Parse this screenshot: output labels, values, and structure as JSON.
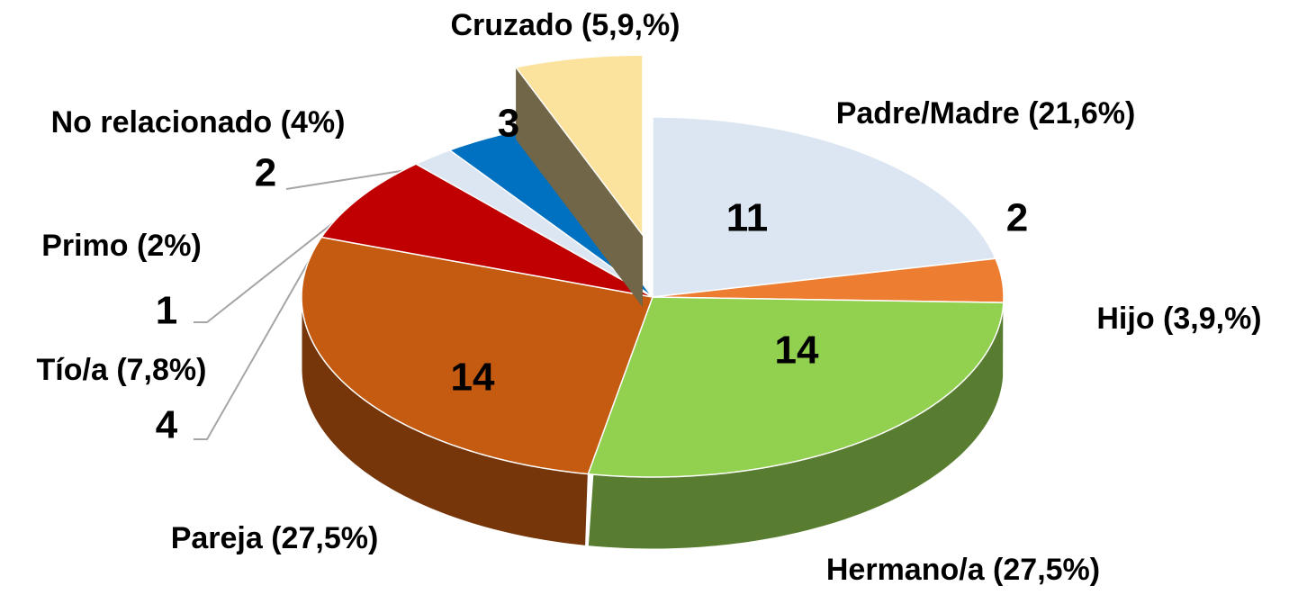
{
  "chart_data": {
    "type": "pie",
    "categories": [
      "Padre/Madre (21,6%)",
      "Hijo (3,9,%)",
      "Hermano/a (27,5%)",
      "Pareja (27,5%)",
      "Tío/a (7,8%)",
      "Primo  (2%)",
      "No relacionado (4%)",
      "Cruzado (5,9,%)"
    ],
    "values": [
      11,
      2,
      14,
      14,
      4,
      1,
      2,
      3
    ],
    "colors": [
      "#dce6f2",
      "#ed7d31",
      "#92d050",
      "#c55a11",
      "#c00000",
      "#dce6f2",
      "#0070c0",
      "#fbe29d"
    ],
    "exploded": [
      7
    ]
  }
}
